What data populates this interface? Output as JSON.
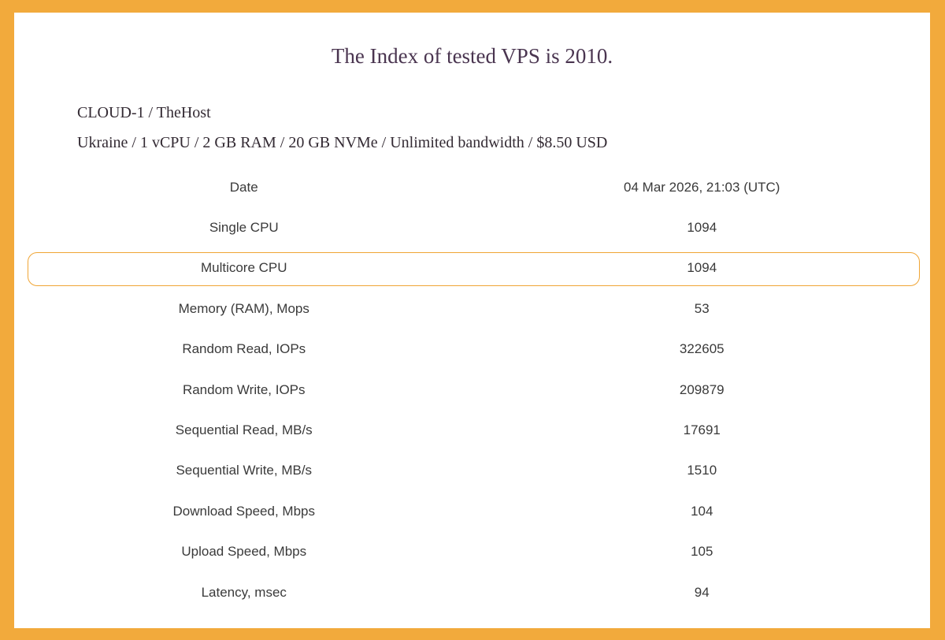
{
  "page": {
    "title": "The Index of tested VPS is 2010.",
    "plan_name": "CLOUD-1 / TheHost",
    "plan_specs": "Ukraine / 1 vCPU / 2 GB RAM / 20 GB NVMe / Unlimited bandwidth / $8.50 USD"
  },
  "colors": {
    "frame": "#f2aa3c",
    "highlight_border": "#f0a535",
    "title_text": "#4a3550"
  },
  "results": {
    "rows": [
      {
        "label": "Date",
        "value": "04 Mar 2026, 21:03 (UTC)"
      },
      {
        "label": "Single CPU",
        "value": "1094"
      },
      {
        "label": "Multicore CPU",
        "value": "1094"
      },
      {
        "label": "Memory (RAM), Mops",
        "value": "53"
      },
      {
        "label": "Random Read, IOPs",
        "value": "322605"
      },
      {
        "label": "Random Write, IOPs",
        "value": "209879"
      },
      {
        "label": "Sequential Read, MB/s",
        "value": "17691"
      },
      {
        "label": "Sequential Write, MB/s",
        "value": "1510"
      },
      {
        "label": "Download Speed, Mbps",
        "value": "104"
      },
      {
        "label": "Upload Speed, Mbps",
        "value": "105"
      },
      {
        "label": "Latency, msec",
        "value": "94"
      }
    ]
  }
}
